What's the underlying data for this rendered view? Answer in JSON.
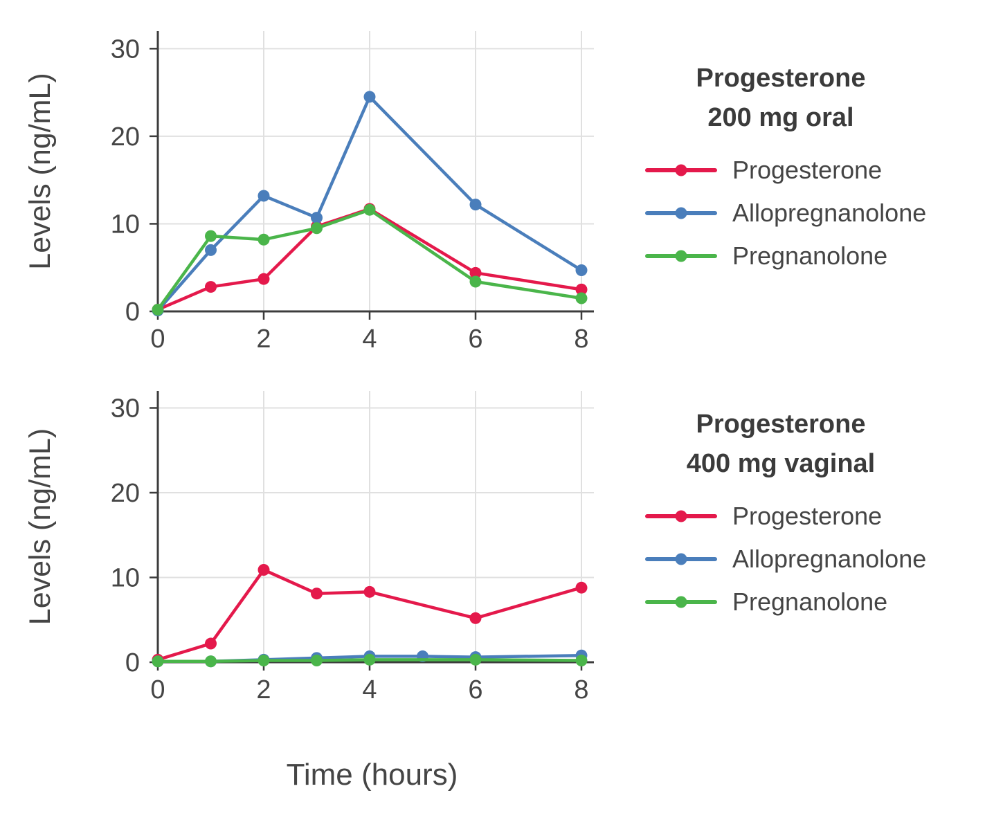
{
  "figure": {
    "xlabel": "Time (hours)",
    "background": "#ffffff",
    "grid_color": "#e0e0e0",
    "axis_color": "#3c3c3c",
    "text_color": "#454545"
  },
  "chart_data": [
    {
      "type": "line",
      "title_lines": [
        "Progesterone",
        "200 mg oral"
      ],
      "ylabel": "Levels (ng/mL)",
      "xlabel": "Time (hours)",
      "xlim": [
        0,
        8.2
      ],
      "ylim": [
        0,
        32
      ],
      "xticks": [
        0,
        2,
        4,
        6,
        8
      ],
      "yticks": [
        0,
        10,
        20,
        30
      ],
      "grid": true,
      "legend_position": "right",
      "series": [
        {
          "name": "Progesterone",
          "color": "#e4194b",
          "x": [
            0,
            1,
            2,
            3,
            4,
            6,
            8
          ],
          "y": [
            0.2,
            2.8,
            3.7,
            9.7,
            11.7,
            4.4,
            2.5
          ]
        },
        {
          "name": "Allopregnanolone",
          "color": "#4a7ebb",
          "x": [
            0,
            1,
            2,
            3,
            4,
            6,
            8
          ],
          "y": [
            0.1,
            7.0,
            13.2,
            10.7,
            24.5,
            12.2,
            4.7
          ]
        },
        {
          "name": "Pregnanolone",
          "color": "#4ab54a",
          "x": [
            0,
            1,
            2,
            3,
            4,
            6,
            8
          ],
          "y": [
            0.2,
            8.6,
            8.2,
            9.5,
            11.6,
            3.4,
            1.5
          ]
        }
      ]
    },
    {
      "type": "line",
      "title_lines": [
        "Progesterone",
        "400 mg vaginal"
      ],
      "ylabel": "Levels (ng/mL)",
      "xlabel": "Time (hours)",
      "xlim": [
        0,
        8.2
      ],
      "ylim": [
        0,
        32
      ],
      "xticks": [
        0,
        2,
        4,
        6,
        8
      ],
      "yticks": [
        0,
        10,
        20,
        30
      ],
      "grid": true,
      "legend_position": "right",
      "series": [
        {
          "name": "Progesterone",
          "color": "#e4194b",
          "x": [
            0,
            1,
            2,
            3,
            4,
            6,
            8
          ],
          "y": [
            0.3,
            2.2,
            10.9,
            8.1,
            8.3,
            5.2,
            8.8
          ]
        },
        {
          "name": "Allopregnanolone",
          "color": "#4a7ebb",
          "x": [
            0,
            1,
            2,
            3,
            4,
            5,
            6,
            8
          ],
          "y": [
            0.1,
            0.1,
            0.3,
            0.5,
            0.7,
            0.7,
            0.6,
            0.8
          ]
        },
        {
          "name": "Pregnanolone",
          "color": "#4ab54a",
          "x": [
            0,
            1,
            2,
            3,
            4,
            6,
            8
          ],
          "y": [
            0.1,
            0.1,
            0.2,
            0.2,
            0.3,
            0.3,
            0.2
          ]
        }
      ]
    }
  ]
}
